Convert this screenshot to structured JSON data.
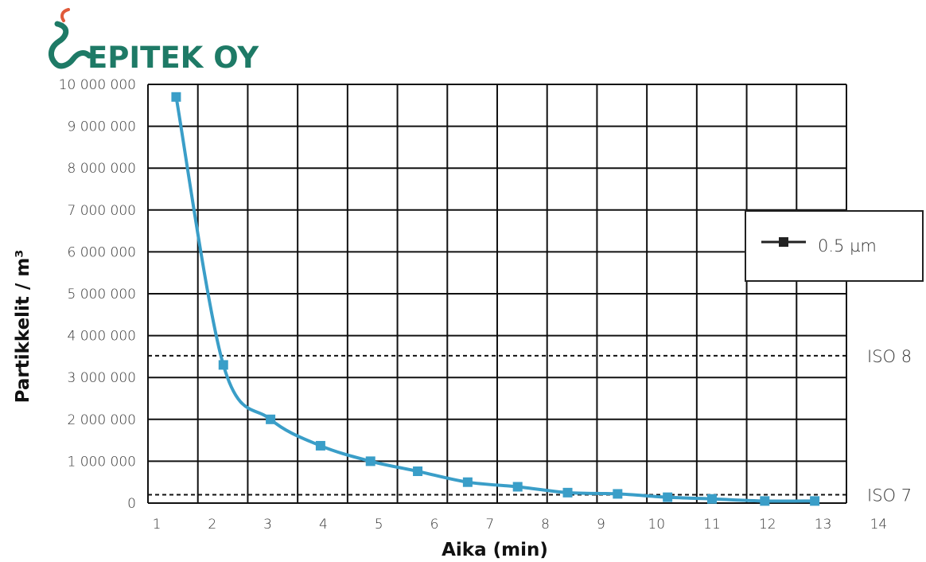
{
  "logo": {
    "text": "EPITEK OY",
    "icon": "snake-icon",
    "color": "#1e7a66",
    "accent": "#e05a3a"
  },
  "chart_data": {
    "type": "line",
    "title": "",
    "xlabel": "Aika (min)",
    "ylabel": "Partikkelit / m³",
    "x_ticks": [
      "1",
      "2",
      "3",
      "4",
      "5",
      "6",
      "7",
      "8",
      "9",
      "10",
      "11",
      "12",
      "13",
      "14"
    ],
    "y_ticks": [
      "0",
      "1 000 000",
      "2 000 000",
      "3 000 000",
      "4 000 000",
      "5 000 000",
      "6 000 000",
      "7 000 000",
      "8 000 000",
      "9 000 000",
      "10 000 000"
    ],
    "xlim": [
      1,
      14
    ],
    "ylim": [
      0,
      10000000
    ],
    "grid": true,
    "legend_position": "right",
    "series": [
      {
        "name": "0.5 µm",
        "color": "#3a9ec8",
        "marker": "square",
        "x": [
          1.35,
          2.2,
          3.05,
          3.95,
          4.85,
          5.7,
          6.6,
          7.5,
          8.4,
          9.3,
          10.2,
          11.0,
          11.95,
          12.85
        ],
        "y": [
          9700000,
          3300000,
          2000000,
          1370000,
          1000000,
          760000,
          500000,
          390000,
          250000,
          220000,
          140000,
          100000,
          50000,
          50000
        ]
      }
    ],
    "reference_lines": [
      {
        "label": "ISO 8",
        "y": 3520000
      },
      {
        "label": "ISO 7",
        "y": 200000
      }
    ],
    "legend_marker_color": "#222222"
  }
}
